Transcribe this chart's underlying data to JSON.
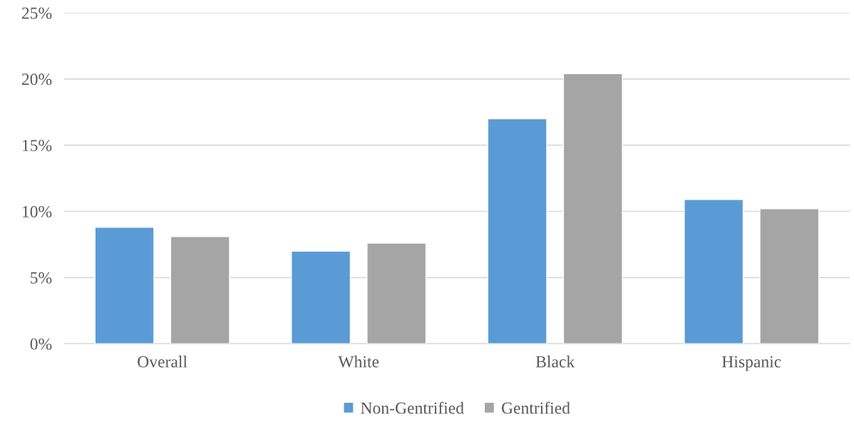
{
  "chart_data": {
    "type": "bar",
    "categories": [
      "Overall",
      "White",
      "Black",
      "Hispanic"
    ],
    "series": [
      {
        "name": "Non-Gentrified",
        "color": "#5b9bd5",
        "values": [
          8.8,
          7.0,
          17.0,
          10.9
        ]
      },
      {
        "name": "Gentrified",
        "color": "#a5a5a5",
        "values": [
          8.1,
          7.6,
          20.4,
          10.2
        ]
      }
    ],
    "ylim": [
      0,
      25
    ],
    "yticks": [
      {
        "value": 0,
        "label": "0%"
      },
      {
        "value": 5,
        "label": "5%"
      },
      {
        "value": 10,
        "label": "10%"
      },
      {
        "value": 15,
        "label": "15%"
      },
      {
        "value": 20,
        "label": "20%"
      },
      {
        "value": 25,
        "label": "25%"
      }
    ],
    "grid": "y",
    "legend": "bottom"
  }
}
